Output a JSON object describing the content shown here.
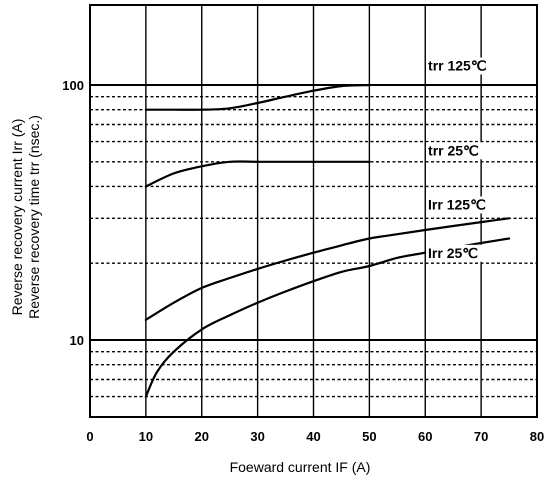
{
  "chart_data": {
    "type": "line",
    "x_scale": "linear",
    "y_scale": "log",
    "xlim": [
      0,
      80
    ],
    "ylim": [
      5,
      200
    ],
    "grid": true,
    "x_ticks": [
      "0",
      "10",
      "20",
      "30",
      "40",
      "50",
      "60",
      "70",
      "80"
    ],
    "y_ticks": [
      "10",
      "100"
    ],
    "xlabel": "Foeward current  IF (A)",
    "ylabel_line1": "Reverse recovery current  Irr  (A)",
    "ylabel_line2": "Reverse recovery time  trr (nsec.)",
    "series": [
      {
        "name": "trr 125°C",
        "x": [
          10,
          15,
          20,
          25,
          30,
          35,
          40,
          45,
          50
        ],
        "y": [
          80,
          80,
          80,
          81,
          85,
          90,
          95,
          99,
          100
        ]
      },
      {
        "name": "trr 25°C",
        "x": [
          10,
          15,
          20,
          25,
          30,
          35,
          40,
          50
        ],
        "y": [
          40,
          45,
          48,
          50,
          50,
          50,
          50,
          50
        ]
      },
      {
        "name": "Irr 125°C",
        "x": [
          10,
          15,
          20,
          25,
          30,
          35,
          40,
          45,
          50,
          55,
          60,
          65,
          70,
          75
        ],
        "y": [
          12,
          14,
          16,
          17.5,
          19,
          20.5,
          22,
          23.5,
          25,
          26,
          27,
          28,
          29,
          30
        ]
      },
      {
        "name": "Irr 25°C",
        "x": [
          10,
          12,
          15,
          20,
          25,
          30,
          35,
          40,
          45,
          50,
          55,
          60,
          65,
          70,
          75
        ],
        "y": [
          6,
          7.5,
          9,
          11,
          12.5,
          14,
          15.5,
          17,
          18.5,
          19.5,
          21,
          22,
          23,
          24,
          25
        ]
      }
    ],
    "labels": [
      {
        "text": "trr 125℃",
        "series": 0
      },
      {
        "text": "trr 25℃",
        "series": 1
      },
      {
        "text": "Irr 125℃",
        "series": 2
      },
      {
        "text": "Irr 25℃",
        "series": 3
      }
    ]
  }
}
